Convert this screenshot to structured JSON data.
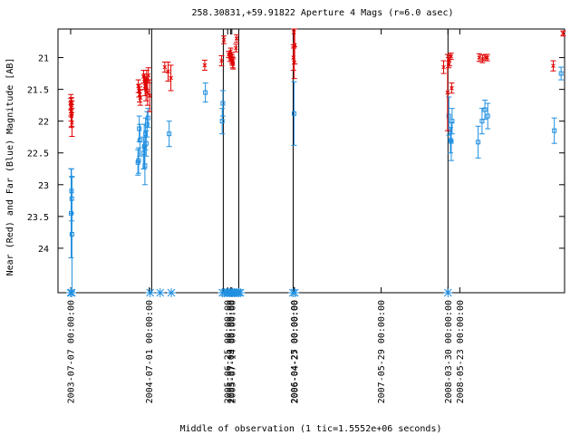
{
  "chart_data": {
    "type": "scatter",
    "title": "258.30831,+59.91822   Aperture 4 Mags (r=6.0 asec)",
    "xlabel": "Middle of observation (1 tic=1.5552e+06 seconds)",
    "ylabel": "Near (Red) and Far (Blue) Magnitude [AB]",
    "xlim": [
      "2003-05-10",
      "2009-09-15"
    ],
    "ylim": [
      24.7,
      20.55
    ],
    "y_inverted": true,
    "y_ticks": [
      21,
      21.5,
      22,
      22.5,
      23,
      23.5,
      24
    ],
    "y_tick_labels": [
      "21",
      "21.5",
      "22",
      "22.5",
      "23",
      "23.5",
      "24"
    ],
    "x_ticks": [
      "2003-07-07",
      "2004-07-01",
      "2005-06-25",
      "2005-07-09",
      "2005-07-14",
      "2006-04-25",
      "2006-04-27",
      "2007-05-29",
      "2008-03-30",
      "2008-05-23"
    ],
    "x_tick_labels": [
      "2003-07-07 00:00:00",
      "2004-07-01 00:00:00",
      "2005-06-25 00:00:00",
      "2005-07-09 00:00:00",
      "2005-07-14 00:00:00",
      "2006-04-25 00:00:00",
      "2006-04-27 00:00:00",
      "2007-05-29 00:00:00",
      "2008-03-30 00:00:00",
      "2008-05-23 00:00:00"
    ],
    "vertical_lines": [
      "2004-07-12",
      "2005-06-05",
      "2005-08-15",
      "2006-04-21",
      "2008-03-30"
    ],
    "grid": false,
    "colors": {
      "near": "#e00000",
      "far": "#1f8fe0",
      "axes": "#000000",
      "lines": "#000000"
    },
    "series": [
      {
        "marker": "x",
        "points": [
          {
            "x": "2003-07-08",
            "y": 21.7,
            "err": 0.12
          },
          {
            "x": "2003-07-08",
            "y": 21.78,
            "err": 0.14
          },
          {
            "x": "2003-07-09",
            "y": 21.85,
            "err": 0.15
          },
          {
            "x": "2003-07-10",
            "y": 21.92,
            "err": 0.18
          },
          {
            "x": "2003-07-11",
            "y": 21.75,
            "err": 0.12
          },
          {
            "x": "2003-07-12",
            "y": 21.88,
            "err": 0.2
          },
          {
            "x": "2003-07-13",
            "y": 22.02,
            "err": 0.22
          },
          {
            "x": "2004-05-12",
            "y": 21.45,
            "err": 0.1
          },
          {
            "x": "2004-05-15",
            "y": 21.52,
            "err": 0.1
          },
          {
            "x": "2004-05-18",
            "y": 21.58,
            "err": 0.12
          },
          {
            "x": "2004-05-21",
            "y": 21.63,
            "err": 0.12
          },
          {
            "x": "2004-06-05",
            "y": 21.3,
            "err": 0.1
          },
          {
            "x": "2004-06-09",
            "y": 21.38,
            "err": 0.12
          },
          {
            "x": "2004-06-12",
            "y": 21.45,
            "err": 0.15
          },
          {
            "x": "2004-06-16",
            "y": 21.5,
            "err": 0.18
          },
          {
            "x": "2004-06-19",
            "y": 21.35,
            "err": 0.15
          },
          {
            "x": "2004-06-23",
            "y": 21.55,
            "err": 0.2
          },
          {
            "x": "2004-06-27",
            "y": 21.28,
            "err": 0.12
          },
          {
            "x": "2004-07-03",
            "y": 21.6,
            "err": 0.25
          },
          {
            "x": "2004-09-10",
            "y": 21.15,
            "err": 0.08
          },
          {
            "x": "2004-09-25",
            "y": 21.22,
            "err": 0.15
          },
          {
            "x": "2004-10-08",
            "y": 21.32,
            "err": 0.2
          },
          {
            "x": "2005-03-12",
            "y": 21.12,
            "err": 0.08
          },
          {
            "x": "2005-05-28",
            "y": 21.05,
            "err": 0.08
          },
          {
            "x": "2005-06-08",
            "y": 20.72,
            "err": 0.06
          },
          {
            "x": "2005-06-30",
            "y": 20.95,
            "err": 0.05
          },
          {
            "x": "2005-07-05",
            "y": 21.0,
            "err": 0.06
          },
          {
            "x": "2005-07-09",
            "y": 20.9,
            "err": 0.05
          },
          {
            "x": "2005-07-12",
            "y": 20.98,
            "err": 0.06
          },
          {
            "x": "2005-07-14",
            "y": 21.02,
            "err": 0.07
          },
          {
            "x": "2005-07-16",
            "y": 21.05,
            "err": 0.07
          },
          {
            "x": "2005-07-18",
            "y": 21.08,
            "err": 0.08
          },
          {
            "x": "2005-07-20",
            "y": 21.1,
            "err": 0.08
          },
          {
            "x": "2005-08-02",
            "y": 20.85,
            "err": 0.06
          },
          {
            "x": "2005-08-05",
            "y": 20.7,
            "err": 0.06
          },
          {
            "x": "2006-04-22",
            "y": 21.0,
            "err": 0.2
          },
          {
            "x": "2006-04-24",
            "y": 20.6,
            "err": 0.25
          },
          {
            "x": "2006-04-26",
            "y": 21.08,
            "err": 0.25
          },
          {
            "x": "2006-04-28",
            "y": 20.8,
            "err": 0.3
          },
          {
            "x": "2008-03-28",
            "y": 21.55,
            "err": 0.6
          },
          {
            "x": "2008-04-02",
            "y": 21.08,
            "err": 0.08
          },
          {
            "x": "2008-04-06",
            "y": 21.05,
            "err": 0.08
          },
          {
            "x": "2008-04-13",
            "y": 20.98,
            "err": 0.05
          },
          {
            "x": "2008-04-16",
            "y": 21.48,
            "err": 0.08
          },
          {
            "x": "2008-03-10",
            "y": 21.15,
            "err": 0.1
          },
          {
            "x": "2008-08-20",
            "y": 21.0,
            "err": 0.06
          },
          {
            "x": "2008-09-04",
            "y": 21.02,
            "err": 0.06
          },
          {
            "x": "2008-09-18",
            "y": 21.0,
            "err": 0.05
          },
          {
            "x": "2008-09-26",
            "y": 21.0,
            "err": 0.05
          },
          {
            "x": "2009-07-25",
            "y": 21.13,
            "err": 0.08
          },
          {
            "x": "2009-09-08",
            "y": 20.62,
            "err": 0.04
          }
        ]
      },
      {
        "marker": "square",
        "points": [
          {
            "x": "2003-07-09",
            "y": 23.45,
            "err": 0.7
          },
          {
            "x": "2003-07-11",
            "y": 23.1,
            "err": 0.35
          },
          {
            "x": "2003-07-12",
            "y": 23.22,
            "err": 0.35
          },
          {
            "x": "2003-07-13",
            "y": 23.78,
            "err": 0.9
          },
          {
            "x": "2004-05-10",
            "y": 22.65,
            "err": 0.2
          },
          {
            "x": "2004-05-13",
            "y": 22.62,
            "err": 0.2
          },
          {
            "x": "2004-05-16",
            "y": 22.12,
            "err": 0.2
          },
          {
            "x": "2004-05-19",
            "y": 22.3,
            "err": 0.25
          },
          {
            "x": "2004-06-04",
            "y": 22.5,
            "err": 0.25
          },
          {
            "x": "2004-06-08",
            "y": 22.4,
            "err": 0.35
          },
          {
            "x": "2004-06-11",
            "y": 22.7,
            "err": 0.3
          },
          {
            "x": "2004-06-14",
            "y": 22.2,
            "err": 0.25
          },
          {
            "x": "2004-06-17",
            "y": 22.35,
            "err": 0.2
          },
          {
            "x": "2004-06-21",
            "y": 22.05,
            "err": 0.2
          },
          {
            "x": "2004-06-25",
            "y": 21.95,
            "err": 0.15
          },
          {
            "x": "2004-09-30",
            "y": 22.2,
            "err": 0.2
          },
          {
            "x": "2005-03-15",
            "y": 21.55,
            "err": 0.15
          },
          {
            "x": "2005-05-31",
            "y": 22.0,
            "err": 0.2
          },
          {
            "x": "2005-06-03",
            "y": 21.72,
            "err": 0.2
          },
          {
            "x": "2006-04-25",
            "y": 21.88,
            "err": 0.5
          },
          {
            "x": "2008-04-03",
            "y": 21.92,
            "err": 0.3
          },
          {
            "x": "2008-04-10",
            "y": 22.3,
            "err": 0.2
          },
          {
            "x": "2008-04-14",
            "y": 22.32,
            "err": 0.3
          },
          {
            "x": "2008-04-18",
            "y": 22.0,
            "err": 0.2
          },
          {
            "x": "2008-08-15",
            "y": 22.33,
            "err": 0.25
          },
          {
            "x": "2008-09-02",
            "y": 22.0,
            "err": 0.2
          },
          {
            "x": "2008-09-15",
            "y": 21.82,
            "err": 0.15
          },
          {
            "x": "2008-09-28",
            "y": 21.92,
            "err": 0.2
          },
          {
            "x": "2009-07-30",
            "y": 22.15,
            "err": 0.2
          },
          {
            "x": "2009-08-30",
            "y": 21.25,
            "err": 0.1
          }
        ]
      }
    ],
    "baseline_markers": [
      "2003-07-07",
      "2003-07-12",
      "2004-07-05",
      "2004-08-20",
      "2004-10-10",
      "2005-06-01",
      "2005-06-10",
      "2005-06-20",
      "2005-06-28",
      "2005-07-06",
      "2005-07-12",
      "2005-07-18",
      "2005-07-25",
      "2005-08-01",
      "2005-08-08",
      "2005-08-15",
      "2005-08-22",
      "2006-04-20",
      "2006-04-28",
      "2008-03-30"
    ]
  }
}
